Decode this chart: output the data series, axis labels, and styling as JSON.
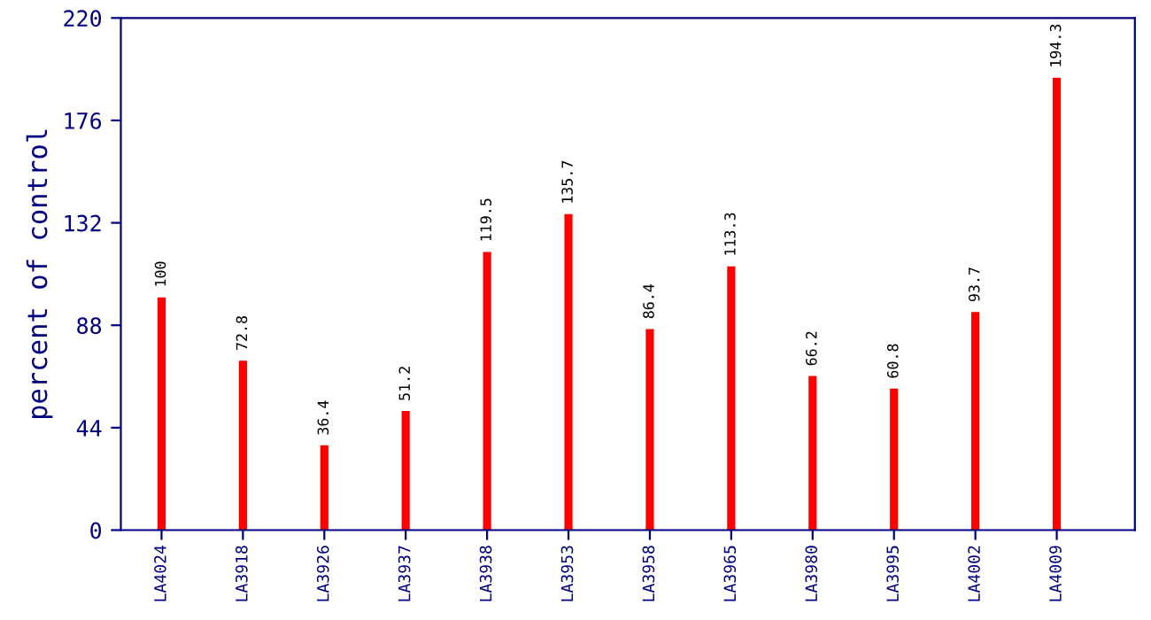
{
  "chart_data": {
    "type": "bar",
    "ylabel": "percent of control",
    "categories": [
      "LA4024",
      "LA3918",
      "LA3926",
      "LA3937",
      "LA3938",
      "LA3953",
      "LA3958",
      "LA3965",
      "LA3980",
      "LA3995",
      "LA4002",
      "LA4009"
    ],
    "values": [
      100,
      72.8,
      36.4,
      51.2,
      119.5,
      135.7,
      86.4,
      113.3,
      66.2,
      60.8,
      93.7,
      194.3
    ],
    "color": "#ff0000",
    "ylim": [
      0,
      220
    ],
    "yticks": [
      0,
      44,
      88,
      132,
      176,
      220
    ],
    "data_labels": true,
    "grid": false,
    "legend": false
  }
}
